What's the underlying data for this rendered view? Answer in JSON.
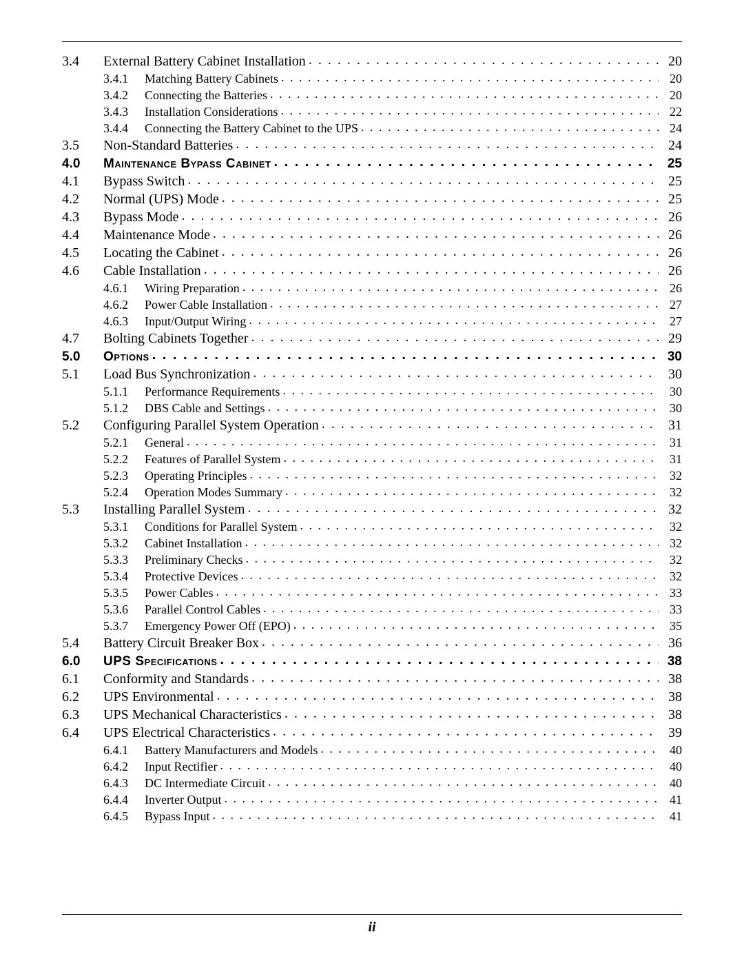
{
  "footer": "ii",
  "entries": [
    {
      "level": 1,
      "num": "3.4",
      "title": "External Battery Cabinet Installation",
      "page": "20"
    },
    {
      "level": 2,
      "num": "3.4.1",
      "title": "Matching Battery Cabinets",
      "page": "20"
    },
    {
      "level": 2,
      "num": "3.4.2",
      "title": "Connecting the Batteries",
      "page": "20"
    },
    {
      "level": 2,
      "num": "3.4.3",
      "title": "Installation Considerations",
      "page": "22"
    },
    {
      "level": 2,
      "num": "3.4.4",
      "title": "Connecting the Battery Cabinet to the UPS",
      "page": "24"
    },
    {
      "level": 1,
      "num": "3.5",
      "title": "Non-Standard Batteries",
      "page": "24"
    },
    {
      "level": 1,
      "bold": true,
      "num": "4.0",
      "title": "Maintenance Bypass Cabinet",
      "page": "25"
    },
    {
      "level": 1,
      "num": "4.1",
      "title": "Bypass Switch",
      "page": "25"
    },
    {
      "level": 1,
      "num": "4.2",
      "title": "Normal (UPS) Mode",
      "page": "25"
    },
    {
      "level": 1,
      "num": "4.3",
      "title": "Bypass Mode",
      "page": "26"
    },
    {
      "level": 1,
      "num": "4.4",
      "title": "Maintenance Mode",
      "page": "26"
    },
    {
      "level": 1,
      "num": "4.5",
      "title": "Locating the Cabinet",
      "page": "26"
    },
    {
      "level": 1,
      "num": "4.6",
      "title": "Cable Installation",
      "page": "26"
    },
    {
      "level": 2,
      "num": "4.6.1",
      "title": "Wiring Preparation",
      "page": "26"
    },
    {
      "level": 2,
      "num": "4.6.2",
      "title": "Power Cable Installation",
      "page": "27"
    },
    {
      "level": 2,
      "num": "4.6.3",
      "title": "Input/Output Wiring",
      "page": "27"
    },
    {
      "level": 1,
      "num": "4.7",
      "title": "Bolting Cabinets Together",
      "page": "29"
    },
    {
      "level": 1,
      "bold": true,
      "num": "5.0",
      "title": "Options",
      "page": "30"
    },
    {
      "level": 1,
      "num": "5.1",
      "title": "Load Bus Synchronization",
      "page": "30"
    },
    {
      "level": 2,
      "num": "5.1.1",
      "title": "Performance Requirements",
      "page": "30"
    },
    {
      "level": 2,
      "num": "5.1.2",
      "title": "DBS Cable and Settings",
      "page": "30"
    },
    {
      "level": 1,
      "num": "5.2",
      "title": "Configuring Parallel System Operation",
      "page": "31"
    },
    {
      "level": 2,
      "num": "5.2.1",
      "title": "General",
      "page": "31"
    },
    {
      "level": 2,
      "num": "5.2.2",
      "title": "Features of Parallel System",
      "page": "31"
    },
    {
      "level": 2,
      "num": "5.2.3",
      "title": "Operating Principles",
      "page": "32"
    },
    {
      "level": 2,
      "num": "5.2.4",
      "title": "Operation Modes Summary",
      "page": "32"
    },
    {
      "level": 1,
      "num": "5.3",
      "title": "Installing Parallel System",
      "page": "32"
    },
    {
      "level": 2,
      "num": "5.3.1",
      "title": "Conditions for Parallel System",
      "page": "32"
    },
    {
      "level": 2,
      "num": "5.3.2",
      "title": "Cabinet Installation",
      "page": "32"
    },
    {
      "level": 2,
      "num": "5.3.3",
      "title": "Preliminary Checks",
      "page": "32"
    },
    {
      "level": 2,
      "num": "5.3.4",
      "title": "Protective Devices",
      "page": "32"
    },
    {
      "level": 2,
      "num": "5.3.5",
      "title": "Power Cables",
      "page": "33"
    },
    {
      "level": 2,
      "num": "5.3.6",
      "title": "Parallel Control Cables",
      "page": "33"
    },
    {
      "level": 2,
      "num": "5.3.7",
      "title": "Emergency Power Off (EPO)",
      "page": "35"
    },
    {
      "level": 1,
      "num": "5.4",
      "title": "Battery Circuit Breaker Box",
      "page": "36"
    },
    {
      "level": 1,
      "bold": true,
      "num": "6.0",
      "title": "UPS Specifications",
      "page": "38"
    },
    {
      "level": 1,
      "num": "6.1",
      "title": "Conformity and Standards",
      "page": "38"
    },
    {
      "level": 1,
      "num": "6.2",
      "title": "UPS Environmental",
      "page": "38"
    },
    {
      "level": 1,
      "num": "6.3",
      "title": "UPS Mechanical Characteristics",
      "page": "38"
    },
    {
      "level": 1,
      "num": "6.4",
      "title": "UPS Electrical Characteristics",
      "page": "39"
    },
    {
      "level": 2,
      "num": "6.4.1",
      "title": "Battery Manufacturers and Models",
      "page": "40"
    },
    {
      "level": 2,
      "num": "6.4.2",
      "title": "Input Rectifier",
      "page": "40"
    },
    {
      "level": 2,
      "num": "6.4.3",
      "title": "DC Intermediate Circuit",
      "page": "40"
    },
    {
      "level": 2,
      "num": "6.4.4",
      "title": "Inverter Output",
      "page": "41"
    },
    {
      "level": 2,
      "num": "6.4.5",
      "title": "Bypass Input",
      "page": "41"
    }
  ]
}
